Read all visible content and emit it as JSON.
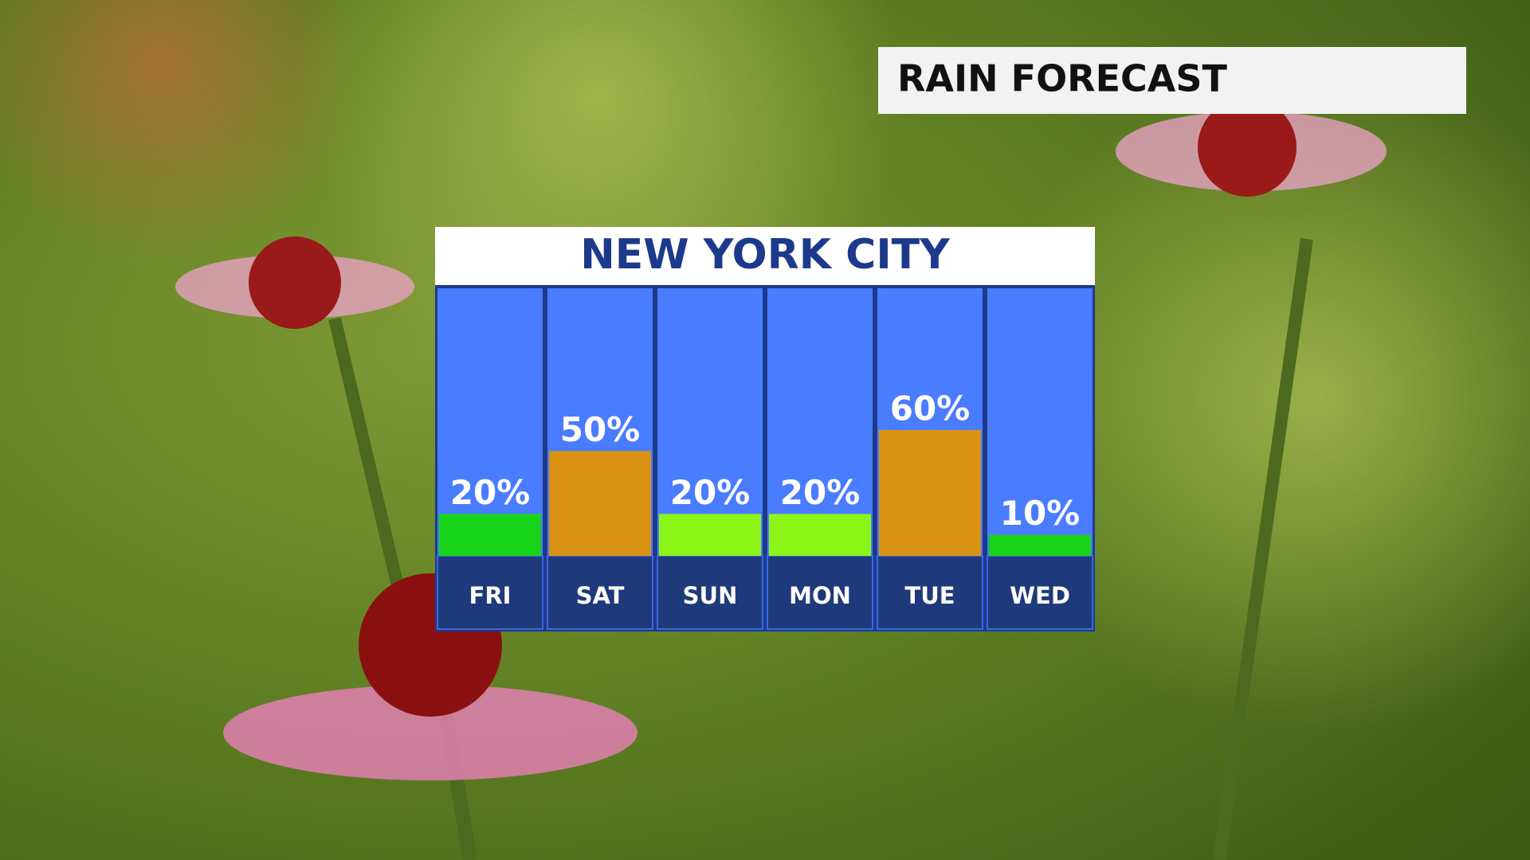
{
  "header": {
    "title": "RAIN FORECAST"
  },
  "chart_data": {
    "type": "bar",
    "title": "NEW YORK CITY",
    "categories": [
      "FRI",
      "SAT",
      "SUN",
      "MON",
      "TUE",
      "WED"
    ],
    "values": [
      20,
      50,
      20,
      20,
      60,
      10
    ],
    "value_labels": [
      "20%",
      "50%",
      "20%",
      "20%",
      "60%",
      "10%"
    ],
    "colors": [
      "#18d418",
      "#d99212",
      "#8cf518",
      "#8cf518",
      "#d99212",
      "#18d418"
    ]
  }
}
